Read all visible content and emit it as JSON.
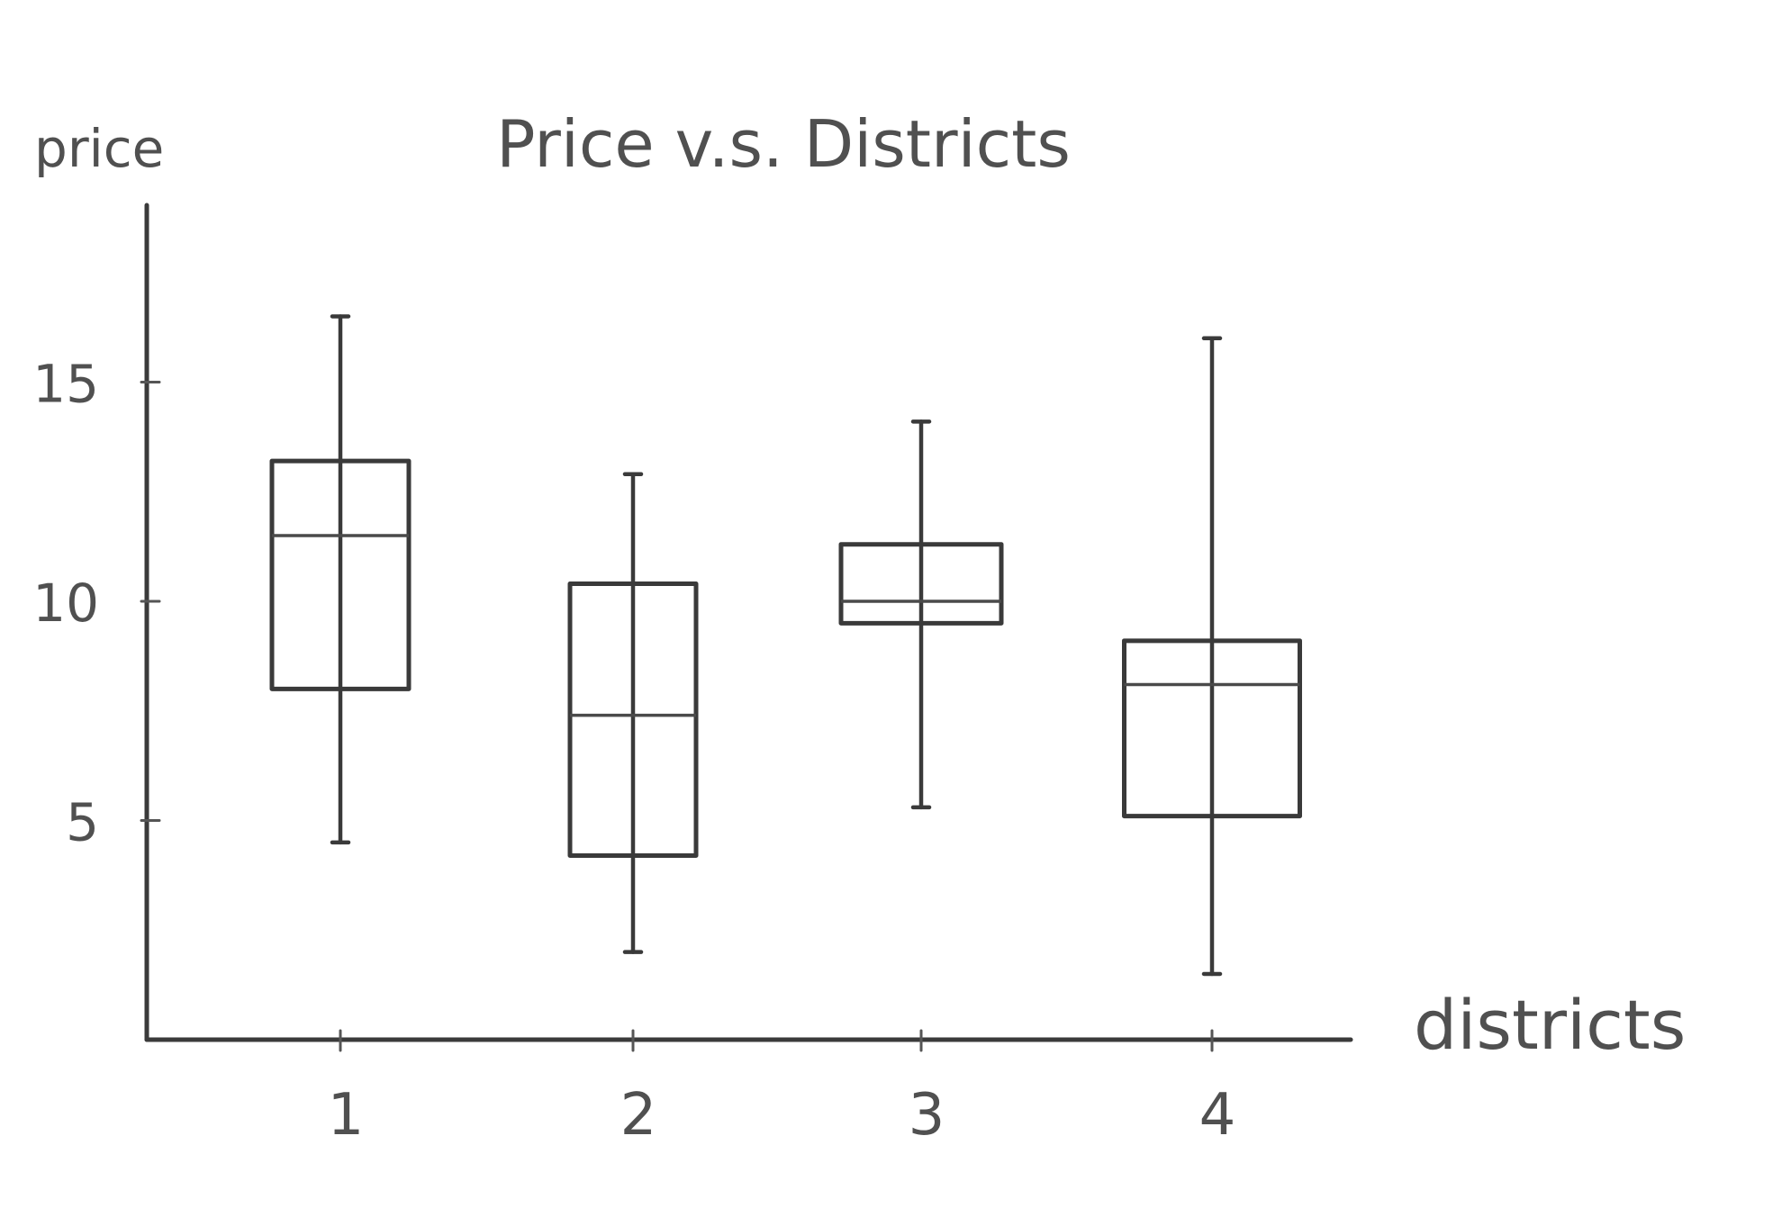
{
  "chart_data": {
    "type": "box",
    "title": "Price v.s. Districts",
    "xlabel": "districts",
    "ylabel": "price",
    "categories": [
      "1",
      "2",
      "3",
      "4"
    ],
    "yticks": [
      "5",
      "10",
      "15"
    ],
    "ylim": [
      0,
      19
    ],
    "grid": false,
    "boxes": [
      {
        "category": "1",
        "min": 4.5,
        "q1": 8.0,
        "median": 11.5,
        "q3": 13.2,
        "max": 16.5
      },
      {
        "category": "2",
        "min": 2.0,
        "q1": 4.2,
        "median": 7.4,
        "q3": 10.4,
        "max": 12.9
      },
      {
        "category": "3",
        "min": 5.3,
        "q1": 9.5,
        "median": 10.0,
        "q3": 11.3,
        "max": 14.1
      },
      {
        "category": "4",
        "min": 1.5,
        "q1": 5.1,
        "median": 8.1,
        "q3": 9.1,
        "max": 16.0
      }
    ]
  }
}
